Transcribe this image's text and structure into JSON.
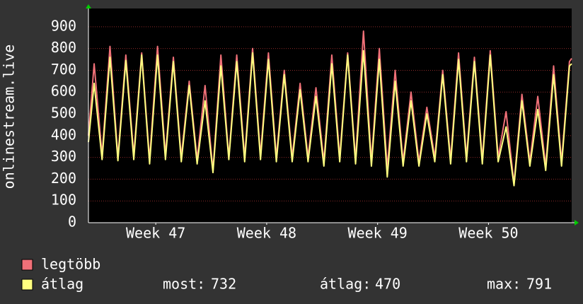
{
  "chart_data": {
    "type": "line",
    "y_label": "onlinestream.live",
    "x": [
      0,
      0.36,
      0.86,
      1.36,
      1.86,
      2.36,
      2.86,
      3.36,
      3.86,
      4.36,
      4.86,
      5.36,
      5.86,
      6.36,
      6.86,
      7.36,
      7.86,
      8.36,
      8.86,
      9.36,
      9.86,
      10.36,
      10.86,
      11.36,
      11.86,
      12.36,
      12.86,
      13.36,
      13.86,
      14.36,
      14.86,
      15.36,
      15.86,
      16.36,
      16.86,
      17.36,
      17.86,
      18.36,
      18.86,
      19.36,
      19.86,
      20.36,
      20.86,
      21.36,
      21.86,
      22.36,
      22.86,
      23.36,
      23.86,
      24.36,
      24.86,
      25.36,
      25.86,
      26.36,
      26.86,
      27.36,
      27.86,
      28.36,
      28.86,
      29.36,
      29.86,
      30.36,
      30.5
    ],
    "series": [
      {
        "name": "legtöbb",
        "color": "#f07078",
        "values": [
          400,
          730,
          310,
          810,
          300,
          770,
          310,
          780,
          290,
          810,
          310,
          760,
          300,
          650,
          290,
          630,
          240,
          770,
          300,
          770,
          300,
          800,
          310,
          780,
          300,
          700,
          300,
          640,
          300,
          620,
          280,
          770,
          300,
          780,
          290,
          880,
          280,
          800,
          250,
          700,
          280,
          600,
          280,
          530,
          300,
          700,
          290,
          780,
          300,
          760,
          290,
          790,
          300,
          510,
          180,
          590,
          280,
          580,
          260,
          720,
          280,
          740,
          755
        ]
      },
      {
        "name": "átlag",
        "color": "#ffff80",
        "values": [
          370,
          640,
          290,
          760,
          285,
          745,
          290,
          770,
          270,
          770,
          290,
          740,
          280,
          630,
          270,
          560,
          230,
          720,
          290,
          740,
          280,
          780,
          290,
          750,
          280,
          680,
          280,
          610,
          280,
          580,
          260,
          730,
          280,
          770,
          270,
          790,
          260,
          750,
          210,
          650,
          260,
          560,
          260,
          500,
          280,
          680,
          270,
          750,
          280,
          740,
          270,
          770,
          280,
          440,
          170,
          560,
          260,
          520,
          240,
          680,
          260,
          720,
          730
        ]
      }
    ],
    "xlim": [
      0,
      30.5
    ],
    "xticks": [
      {
        "value": 4.25,
        "label": "Week 47"
      },
      {
        "value": 11.25,
        "label": "Week 48"
      },
      {
        "value": 18.25,
        "label": "Week 49"
      },
      {
        "value": 25.25,
        "label": "Week 50"
      }
    ],
    "ylim": [
      0,
      984
    ],
    "yticks": [
      0,
      100,
      200,
      300,
      400,
      500,
      600,
      700,
      800,
      900
    ],
    "grid": true,
    "stats": [
      {
        "label": "most:",
        "value": 732
      },
      {
        "label": "átlag:",
        "value": 470
      },
      {
        "label": "max:",
        "value": 791
      }
    ]
  }
}
